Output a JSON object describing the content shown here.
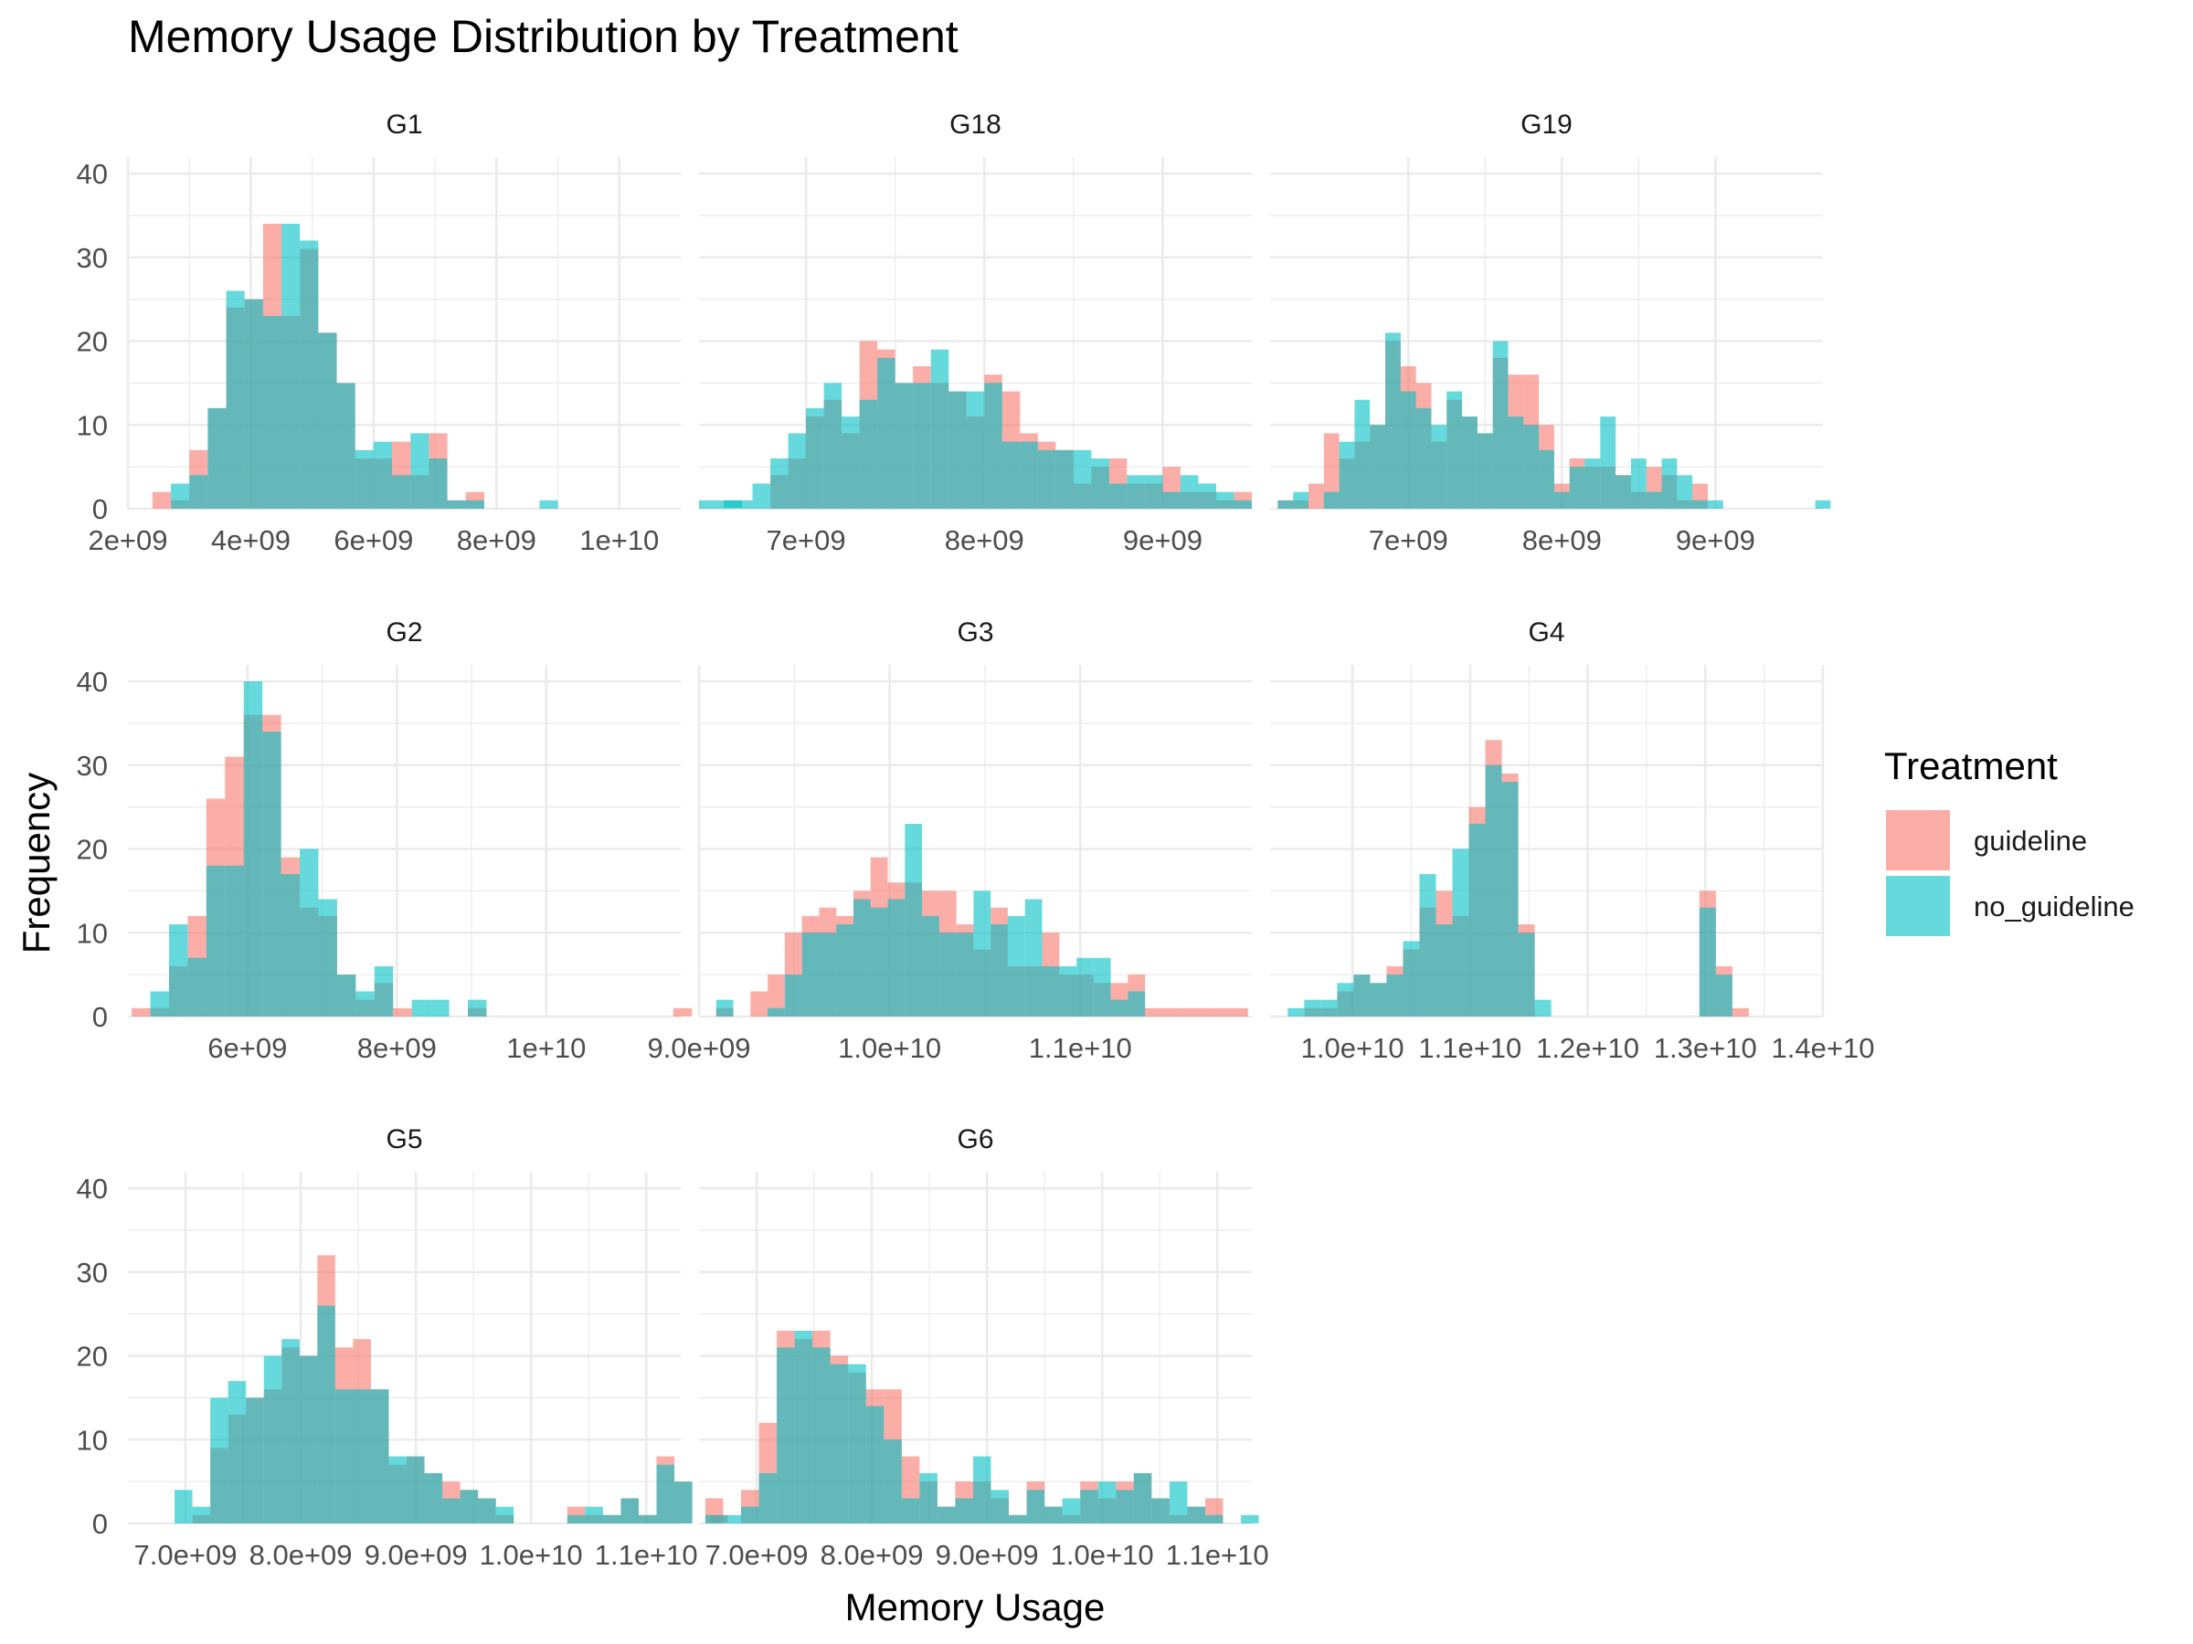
{
  "chart_data": {
    "type": "histogram",
    "title": "Memory Usage Distribution by Treatment",
    "xlabel": "Memory Usage",
    "ylabel": "Frequency",
    "ylim": [
      0,
      40
    ],
    "y_ticks": [
      0,
      10,
      20,
      30,
      40
    ],
    "grid": true,
    "legend": {
      "title": "Treatment",
      "placement": "right",
      "items": [
        {
          "name": "guideline",
          "color": "#F8766D"
        },
        {
          "name": "no_guideline",
          "color": "#00BFC4"
        }
      ]
    },
    "facet_order": [
      "G1",
      "G18",
      "G19",
      "G2",
      "G3",
      "G4",
      "G5",
      "G6"
    ],
    "facets": [
      {
        "name": "G1",
        "xlim": [
          2000000000,
          11000000000
        ],
        "x_ticks": [
          2000000000,
          4000000000,
          6000000000,
          8000000000,
          10000000000
        ],
        "x_tick_labels": [
          "2e+09",
          "4e+09",
          "6e+09",
          "8e+09",
          "1e+10"
        ],
        "bin_start": 2400000000,
        "bin_width": 300000000,
        "series": [
          {
            "name": "guideline",
            "counts": [
              2,
              1,
              7,
              12,
              24,
              25,
              34,
              23,
              31,
              21,
              15,
              6,
              6,
              8,
              4,
              9,
              1,
              2,
              0,
              0,
              0,
              0,
              0,
              0,
              0,
              0,
              0,
              0,
              0,
              0,
              0,
              0
            ]
          },
          {
            "name": "no_guideline",
            "counts": [
              0,
              3,
              4,
              12,
              26,
              25,
              23,
              34,
              32,
              21,
              15,
              7,
              8,
              4,
              9,
              6,
              1,
              1,
              0,
              0,
              0,
              1,
              0,
              0,
              0,
              0,
              0,
              0,
              0,
              0,
              0,
              1
            ]
          }
        ]
      },
      {
        "name": "G18",
        "xlim": [
          6400000000,
          9500000000
        ],
        "x_ticks": [
          7000000000,
          8000000000,
          9000000000
        ],
        "x_tick_labels": [
          "7e+09",
          "8e+09",
          "9e+09"
        ],
        "bin_start": 6400000000,
        "bin_width": 100000000,
        "series": [
          {
            "name": "guideline",
            "counts": [
              0,
              0,
              0,
              0,
              4,
              6,
              11,
              13,
              9,
              20,
              19,
              15,
              17,
              15,
              14,
              11,
              16,
              14,
              9,
              8,
              7,
              3,
              5,
              6,
              3,
              3,
              5,
              2,
              2,
              1,
              2
            ]
          },
          {
            "name": "no_guideline",
            "counts": [
              1,
              1,
              1,
              3,
              6,
              9,
              12,
              15,
              11,
              13,
              18,
              15,
              15,
              19,
              14,
              14,
              15,
              8,
              8,
              7,
              7,
              7,
              6,
              3,
              4,
              4,
              2,
              4,
              3,
              2,
              1
            ]
          }
        ]
      },
      {
        "name": "G19",
        "xlim": [
          6100000000,
          9700000000
        ],
        "x_ticks": [
          7000000000,
          8000000000,
          9000000000
        ],
        "x_tick_labels": [
          "7e+09",
          "8e+09",
          "9e+09"
        ],
        "bin_start": 6150000000,
        "bin_width": 100000000,
        "series": [
          {
            "name": "guideline",
            "counts": [
              1,
              1,
              3,
              9,
              6,
              8,
              10,
              20,
              17,
              15,
              8,
              13,
              11,
              9,
              18,
              16,
              16,
              10,
              3,
              6,
              5,
              5,
              4,
              2,
              5,
              4,
              1,
              3,
              0,
              0,
              0,
              0,
              0,
              0,
              0,
              0
            ]
          },
          {
            "name": "no_guideline",
            "counts": [
              1,
              2,
              0,
              2,
              8,
              13,
              10,
              21,
              14,
              12,
              10,
              14,
              11,
              9,
              20,
              11,
              10,
              7,
              2,
              5,
              6,
              11,
              4,
              6,
              2,
              6,
              4,
              1,
              1,
              0,
              0,
              0,
              0,
              0,
              0,
              1
            ]
          }
        ]
      },
      {
        "name": "G2",
        "xlim": [
          4400000000,
          11800000000
        ],
        "x_ticks": [
          6000000000,
          8000000000,
          10000000000
        ],
        "x_tick_labels": [
          "6e+09",
          "8e+09",
          "1e+10"
        ],
        "bin_start": 4450000000,
        "bin_width": 250000000,
        "series": [
          {
            "name": "guideline",
            "counts": [
              1,
              1,
              6,
              12,
              26,
              31,
              36,
              36,
              19,
              13,
              12,
              5,
              2,
              4,
              1,
              0,
              0,
              0,
              1,
              0,
              0,
              0,
              0,
              0,
              0,
              0,
              0,
              0,
              0,
              1
            ]
          },
          {
            "name": "no_guideline",
            "counts": [
              0,
              3,
              11,
              7,
              18,
              18,
              40,
              34,
              17,
              20,
              14,
              5,
              3,
              6,
              0,
              2,
              2,
              0,
              2,
              0,
              0,
              0,
              0,
              0,
              0,
              0,
              0,
              0,
              0,
              0
            ]
          }
        ]
      },
      {
        "name": "G3",
        "xlim": [
          9000000000,
          11900000000
        ],
        "x_ticks": [
          9000000000,
          10000000000,
          11000000000
        ],
        "x_tick_labels": [
          "9.0e+09",
          "1.0e+10",
          "1.1e+10"
        ],
        "bin_start": 9000000000,
        "bin_width": 90000000,
        "series": [
          {
            "name": "guideline",
            "counts": [
              0,
              1,
              0,
              3,
              5,
              10,
              12,
              13,
              12,
              15,
              19,
              16,
              16,
              15,
              15,
              11,
              8,
              13,
              6,
              6,
              10,
              5,
              5,
              4,
              4,
              5,
              1,
              1,
              1,
              1,
              1,
              1
            ]
          },
          {
            "name": "no_guideline",
            "counts": [
              0,
              2,
              0,
              0,
              1,
              5,
              10,
              10,
              11,
              14,
              13,
              14,
              23,
              12,
              10,
              10,
              15,
              11,
              12,
              14,
              6,
              6,
              7,
              7,
              2,
              3,
              0,
              0,
              0,
              0,
              0,
              0
            ]
          }
        ]
      },
      {
        "name": "G4",
        "xlim": [
          9300000000,
          14000000000
        ],
        "x_ticks": [
          10000000000,
          11000000000,
          12000000000,
          13000000000,
          14000000000
        ],
        "x_tick_labels": [
          "1.0e+10",
          "1.1e+10",
          "1.2e+10",
          "1.3e+10",
          "1.4e+10"
        ],
        "bin_start": 9450000000,
        "bin_width": 140000000,
        "series": [
          {
            "name": "guideline",
            "counts": [
              0,
              1,
              1,
              3,
              5,
              4,
              6,
              8,
              13,
              15,
              12,
              25,
              33,
              29,
              11,
              0,
              0,
              0,
              0,
              0,
              0,
              0,
              0,
              0,
              0,
              15,
              6,
              1
            ]
          },
          {
            "name": "no_guideline",
            "counts": [
              1,
              2,
              2,
              4,
              5,
              4,
              5,
              9,
              17,
              11,
              20,
              23,
              30,
              28,
              10,
              2,
              0,
              0,
              0,
              0,
              0,
              0,
              0,
              0,
              0,
              13,
              5,
              0
            ]
          }
        ]
      },
      {
        "name": "G5",
        "xlim": [
          6500000000,
          11300000000
        ],
        "x_ticks": [
          7000000000,
          8000000000,
          9000000000,
          10000000000,
          11000000000
        ],
        "x_tick_labels": [
          "7.0e+09",
          "8.0e+09",
          "9.0e+09",
          "1.0e+10",
          "1.1e+10"
        ],
        "bin_start": 6750000000,
        "bin_width": 155000000,
        "series": [
          {
            "name": "guideline",
            "counts": [
              0,
              0,
              1,
              9,
              13,
              15,
              16,
              21,
              20,
              32,
              21,
              22,
              16,
              7,
              8,
              6,
              5,
              4,
              3,
              1,
              0,
              0,
              0,
              2,
              1,
              1,
              3,
              1,
              8,
              5,
              0,
              1
            ]
          },
          {
            "name": "no_guideline",
            "counts": [
              0,
              4,
              2,
              15,
              17,
              15,
              20,
              22,
              20,
              26,
              16,
              16,
              16,
              8,
              8,
              6,
              3,
              4,
              3,
              2,
              0,
              0,
              0,
              1,
              2,
              1,
              3,
              1,
              7,
              5,
              0,
              0
            ]
          }
        ]
      },
      {
        "name": "G6",
        "xlim": [
          6500000000,
          11300000000
        ],
        "x_ticks": [
          7000000000,
          8000000000,
          9000000000,
          10000000000,
          11000000000
        ],
        "x_tick_labels": [
          "7.0e+09",
          "8.0e+09",
          "9.0e+09",
          "1.0e+10",
          "1.1e+10"
        ],
        "bin_start": 6400000000,
        "bin_width": 155000000,
        "series": [
          {
            "name": "guideline",
            "counts": [
              0,
              3,
              0,
              4,
              12,
              23,
              22,
              23,
              20,
              18,
              16,
              16,
              8,
              5,
              2,
              5,
              5,
              3,
              1,
              5,
              2,
              1,
              5,
              3,
              5,
              6,
              3,
              1,
              2,
              3,
              0,
              0
            ]
          },
          {
            "name": "no_guideline",
            "counts": [
              0,
              1,
              1,
              2,
              6,
              21,
              23,
              21,
              19,
              19,
              14,
              10,
              3,
              6,
              2,
              3,
              8,
              4,
              1,
              4,
              2,
              3,
              4,
              5,
              4,
              6,
              3,
              5,
              2,
              1,
              0,
              1
            ]
          }
        ]
      }
    ]
  }
}
